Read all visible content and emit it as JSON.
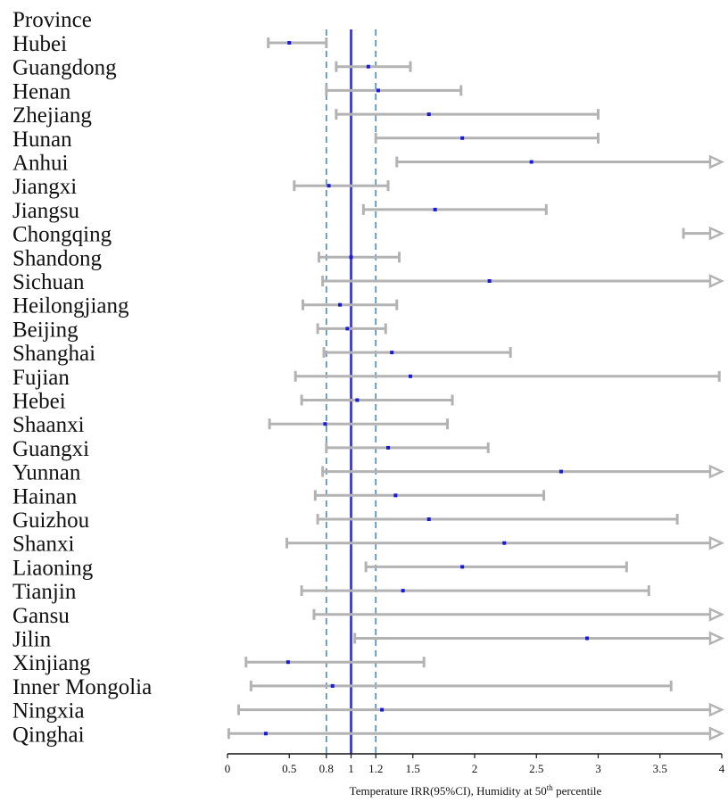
{
  "chart_data": {
    "type": "forest",
    "header": "Province",
    "xlabel_main": "Temperature IRR(95%CI), Humidity at 50",
    "xlabel_sup": "th",
    "xlabel_tail": " percentile",
    "xlim": [
      0,
      4
    ],
    "ticks": [
      {
        "value": 0,
        "label": "0"
      },
      {
        "value": 0.5,
        "label": "0.5"
      },
      {
        "value": 0.8,
        "label": "0.8"
      },
      {
        "value": 1,
        "label": "1"
      },
      {
        "value": 1.2,
        "label": "1.2"
      },
      {
        "value": 1.5,
        "label": "1.5"
      },
      {
        "value": 2,
        "label": "2"
      },
      {
        "value": 2.5,
        "label": "2.5"
      },
      {
        "value": 3,
        "label": "3"
      },
      {
        "value": 3.5,
        "label": "3.5"
      },
      {
        "value": 4,
        "label": "4"
      }
    ],
    "reference_line": 1,
    "dashed_lines": [
      0.8,
      1.2
    ],
    "colors": {
      "interval": "#b3b3b3",
      "point": "#1a1ad6",
      "reference": "#3a3ac8",
      "dashed": "#3d8fd6",
      "axis": "#111111"
    },
    "rows": [
      {
        "province": "Hubei",
        "estimate": 0.5,
        "lower": 0.33,
        "upper": 0.8,
        "arrow_right": false
      },
      {
        "province": "Guangdong",
        "estimate": 1.14,
        "lower": 0.88,
        "upper": 1.48,
        "arrow_right": false
      },
      {
        "province": "Henan",
        "estimate": 1.22,
        "lower": 0.8,
        "upper": 1.89,
        "arrow_right": false
      },
      {
        "province": "Zhejiang",
        "estimate": 1.63,
        "lower": 0.88,
        "upper": 3.0,
        "arrow_right": false
      },
      {
        "province": "Hunan",
        "estimate": 1.9,
        "lower": 1.2,
        "upper": 3.0,
        "arrow_right": false
      },
      {
        "province": "Anhui",
        "estimate": 2.46,
        "lower": 1.37,
        "upper": 4.0,
        "arrow_right": true
      },
      {
        "province": "Jiangxi",
        "estimate": 0.82,
        "lower": 0.54,
        "upper": 1.3,
        "arrow_right": false
      },
      {
        "province": "Jiangsu",
        "estimate": 1.68,
        "lower": 1.1,
        "upper": 2.58,
        "arrow_right": false
      },
      {
        "province": "Chongqing",
        "estimate": null,
        "lower": 3.69,
        "upper": 4.0,
        "arrow_right": true
      },
      {
        "province": "Shandong",
        "estimate": 1.0,
        "lower": 0.74,
        "upper": 1.39,
        "arrow_right": false
      },
      {
        "province": "Sichuan",
        "estimate": 2.12,
        "lower": 0.77,
        "upper": 4.0,
        "arrow_right": true
      },
      {
        "province": "Heilongjiang",
        "estimate": 0.91,
        "lower": 0.61,
        "upper": 1.37,
        "arrow_right": false
      },
      {
        "province": "Beijing",
        "estimate": 0.97,
        "lower": 0.73,
        "upper": 1.28,
        "arrow_right": false
      },
      {
        "province": "Shanghai",
        "estimate": 1.33,
        "lower": 0.78,
        "upper": 2.29,
        "arrow_right": false
      },
      {
        "province": "Fujian",
        "estimate": 1.48,
        "lower": 0.55,
        "upper": 3.98,
        "arrow_right": false
      },
      {
        "province": "Hebei",
        "estimate": 1.05,
        "lower": 0.6,
        "upper": 1.82,
        "arrow_right": false
      },
      {
        "province": "Shaanxi",
        "estimate": 0.79,
        "lower": 0.34,
        "upper": 1.78,
        "arrow_right": false
      },
      {
        "province": "Guangxi",
        "estimate": 1.3,
        "lower": 0.8,
        "upper": 2.11,
        "arrow_right": false
      },
      {
        "province": "Yunnan",
        "estimate": 2.7,
        "lower": 0.77,
        "upper": 4.0,
        "arrow_right": true
      },
      {
        "province": "Hainan",
        "estimate": 1.36,
        "lower": 0.71,
        "upper": 2.56,
        "arrow_right": false
      },
      {
        "province": "Guizhou",
        "estimate": 1.63,
        "lower": 0.73,
        "upper": 3.64,
        "arrow_right": false
      },
      {
        "province": "Shanxi",
        "estimate": 2.24,
        "lower": 0.48,
        "upper": 4.0,
        "arrow_right": true
      },
      {
        "province": "Liaoning",
        "estimate": 1.9,
        "lower": 1.12,
        "upper": 3.23,
        "arrow_right": false
      },
      {
        "province": "Tianjin",
        "estimate": 1.42,
        "lower": 0.6,
        "upper": 3.41,
        "arrow_right": false
      },
      {
        "province": "Gansu",
        "estimate": null,
        "lower": 0.7,
        "upper": 4.0,
        "arrow_right": true
      },
      {
        "province": "Jilin",
        "estimate": 2.91,
        "lower": 1.03,
        "upper": 4.0,
        "arrow_right": true
      },
      {
        "province": "Xinjiang",
        "estimate": 0.49,
        "lower": 0.15,
        "upper": 1.59,
        "arrow_right": false
      },
      {
        "province": "Inner Mongolia",
        "estimate": 0.85,
        "lower": 0.19,
        "upper": 3.59,
        "arrow_right": false
      },
      {
        "province": "Ningxia",
        "estimate": 1.25,
        "lower": 0.09,
        "upper": 4.0,
        "arrow_right": true
      },
      {
        "province": "Qinghai",
        "estimate": 0.31,
        "lower": 0.01,
        "upper": 4.0,
        "arrow_right": true
      }
    ]
  }
}
